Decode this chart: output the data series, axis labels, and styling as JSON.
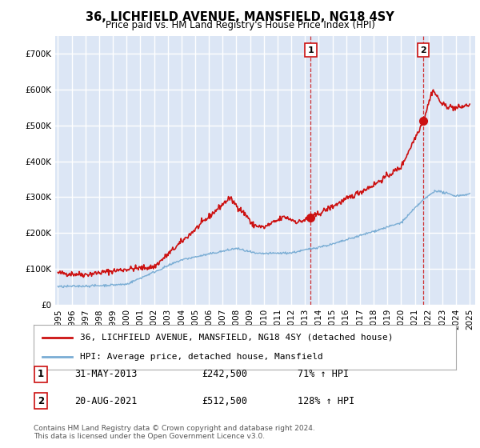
{
  "title": "36, LICHFIELD AVENUE, MANSFIELD, NG18 4SY",
  "subtitle": "Price paid vs. HM Land Registry's House Price Index (HPI)",
  "ylim": [
    0,
    750000
  ],
  "yticks": [
    0,
    100000,
    200000,
    300000,
    400000,
    500000,
    600000,
    700000
  ],
  "background_color": "#ffffff",
  "plot_bg": "#dce6f5",
  "grid_color": "#ffffff",
  "red_color": "#cc1111",
  "blue_color": "#7aadd4",
  "sale1_year": 2013.42,
  "sale1_value": 242500,
  "sale2_year": 2021.62,
  "sale2_value": 512500,
  "legend_entry1": "36, LICHFIELD AVENUE, MANSFIELD, NG18 4SY (detached house)",
  "legend_entry2": "HPI: Average price, detached house, Mansfield",
  "annotation1_label": "1",
  "annotation1_date": "31-MAY-2013",
  "annotation1_price": "£242,500",
  "annotation1_hpi": "71% ↑ HPI",
  "annotation2_label": "2",
  "annotation2_date": "20-AUG-2021",
  "annotation2_price": "£512,500",
  "annotation2_hpi": "128% ↑ HPI",
  "footnote": "Contains HM Land Registry data © Crown copyright and database right 2024.\nThis data is licensed under the Open Government Licence v3.0."
}
